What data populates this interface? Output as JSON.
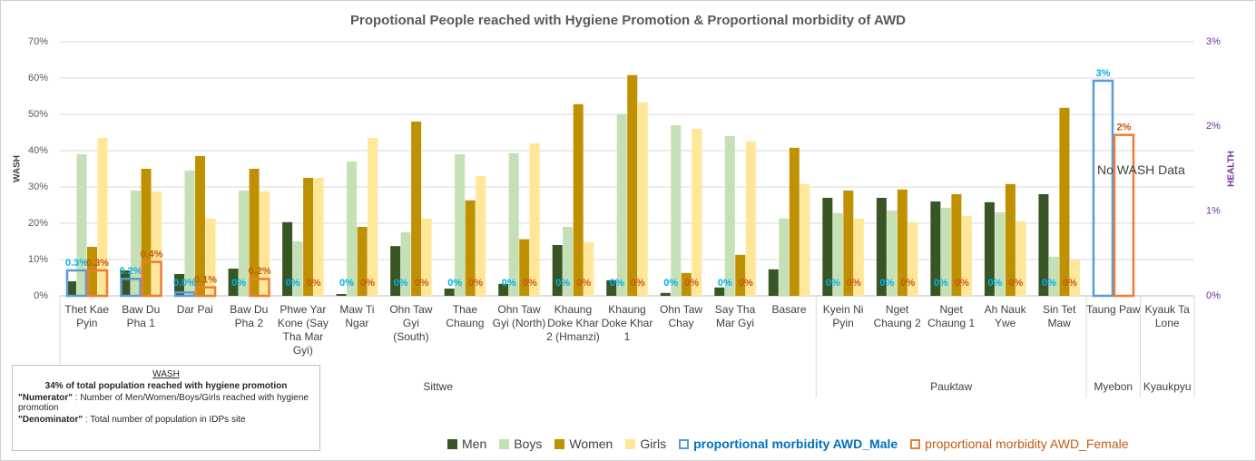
{
  "chart_data": {
    "type": "bar",
    "title": "Propotional People reached with Hygiene Promotion & Proportional morbidity of AWD",
    "y_label": "WASH",
    "y2_label": "HEALTH",
    "annotation": "No WASH Data",
    "categories": [
      "Thet Kae Pyin",
      "Baw Du Pha 1",
      "Dar Pai",
      "Baw Du Pha 2",
      "Phwe Yar Kone (Say Tha Mar Gyi)",
      "Maw Ti Ngar",
      "Ohn Taw Gyi (South)",
      "Thae Chaung",
      "Ohn Taw Gyi (North)",
      "Khaung Doke Khar 2 (Hmanzi)",
      "Khaung Doke Khar 1",
      "Ohn Taw Chay",
      "Say Tha Mar Gyi",
      "Basare",
      "Kyein Ni Pyin",
      "Nget Chaung 2",
      "Nget Chaung 1",
      "Ah Nauk Ywe",
      "Sin Tet Maw",
      "Taung Paw",
      "Kyauk Ta Lone"
    ],
    "groups": [
      {
        "name": "Sittwe",
        "count": 14
      },
      {
        "name": "Pauktaw",
        "count": 5
      },
      {
        "name": "Myebon",
        "count": 1
      },
      {
        "name": "Kyaukpyu",
        "count": 1
      }
    ],
    "series": [
      {
        "name": "Men",
        "color": "#375623",
        "values": [
          4,
          7,
          6,
          7.5,
          20.3,
          0.5,
          13.7,
          2,
          3.3,
          14,
          4.3,
          0.8,
          2.3,
          7.3,
          27,
          27,
          26,
          25.8,
          28,
          null,
          null
        ]
      },
      {
        "name": "Boys",
        "color": "#c5e0b4",
        "values": [
          39,
          29,
          34.5,
          29,
          15,
          37,
          17.5,
          39,
          39.3,
          19,
          50,
          47,
          44,
          21.3,
          22.8,
          23.5,
          24.3,
          23,
          10.8,
          null,
          null
        ]
      },
      {
        "name": "Women",
        "color": "#bf9000",
        "values": [
          13.5,
          35,
          38.5,
          35,
          32.5,
          19,
          48,
          26.3,
          15.6,
          52.8,
          60.8,
          6.3,
          11.3,
          40.8,
          29,
          29.3,
          28,
          30.8,
          51.8,
          null,
          null
        ]
      },
      {
        "name": "Girls",
        "color": "#ffe699",
        "values": [
          43.5,
          28.8,
          21.3,
          28.8,
          32.5,
          43.5,
          21.3,
          33,
          42,
          14.8,
          53.3,
          46,
          42.5,
          30.8,
          21.3,
          20.3,
          22,
          20.5,
          9.8,
          null,
          null
        ]
      },
      {
        "name": "proportional morbidity AWD_Male",
        "color": "#5b9bd5",
        "label_color": "#00b0f0",
        "axis": "y2",
        "style": "outline",
        "values": [
          0.3,
          0.2,
          0.04,
          0,
          0,
          0,
          0,
          0,
          0,
          0,
          0,
          0,
          0,
          null,
          0,
          0,
          0,
          0,
          0,
          2.54,
          null
        ],
        "value_labels": [
          "0.3%",
          "0.2%",
          "0.0%",
          "0%",
          "0%",
          "0%",
          "0%",
          "0%",
          "0%",
          "0%",
          "0%",
          "0%",
          "0%",
          null,
          "0%",
          "0%",
          "0%",
          "0%",
          "0%",
          "3%",
          null
        ]
      },
      {
        "name": "proportional morbidity AWD_Female",
        "color": "#ed7d31",
        "label_color": "#c55a11",
        "axis": "y2",
        "style": "outline",
        "values": [
          0.3,
          0.4,
          0.1,
          0.2,
          0,
          0,
          0,
          0,
          0,
          0,
          0,
          0,
          0,
          null,
          0,
          0,
          0,
          0,
          0,
          1.9,
          null
        ],
        "value_labels": [
          "0.3%",
          "0.4%",
          "0.1%",
          "0.2%",
          "0%",
          "0%",
          "0%",
          "0%",
          "0%",
          "0%",
          "0%",
          "0%",
          "0%",
          null,
          "0%",
          "0%",
          "0%",
          "0%",
          "0%",
          "2%",
          null
        ]
      }
    ],
    "ylim": [
      0,
      70
    ],
    "yticks": [
      {
        "value": 0,
        "label": "0%"
      },
      {
        "value": 10,
        "label": "10%"
      },
      {
        "value": 20,
        "label": "20%"
      },
      {
        "value": 30,
        "label": "30%"
      },
      {
        "value": 40,
        "label": "40%"
      },
      {
        "value": 50,
        "label": "50%"
      },
      {
        "value": 60,
        "label": "60%"
      },
      {
        "value": 70,
        "label": "70%"
      }
    ],
    "y2lim": [
      0,
      3
    ],
    "y2ticks": [
      {
        "value": 0,
        "label": "0%"
      },
      {
        "value": 1,
        "label": "1%"
      },
      {
        "value": 2,
        "label": "2%"
      },
      {
        "value": 3,
        "label": "3%"
      }
    ],
    "grid": true,
    "legend": "bottom"
  },
  "note": {
    "title": "WASH",
    "headline": "34% of total population reached with hygiene promotion",
    "numerator_label": "\"Numerator\"",
    "numerator_text": " : Number of  Men/Women/Boys/Girls reached with hygiene promotion",
    "denominator_label": "\"Denominator\"",
    "denominator_text": " : Total number of population in IDPs site"
  }
}
